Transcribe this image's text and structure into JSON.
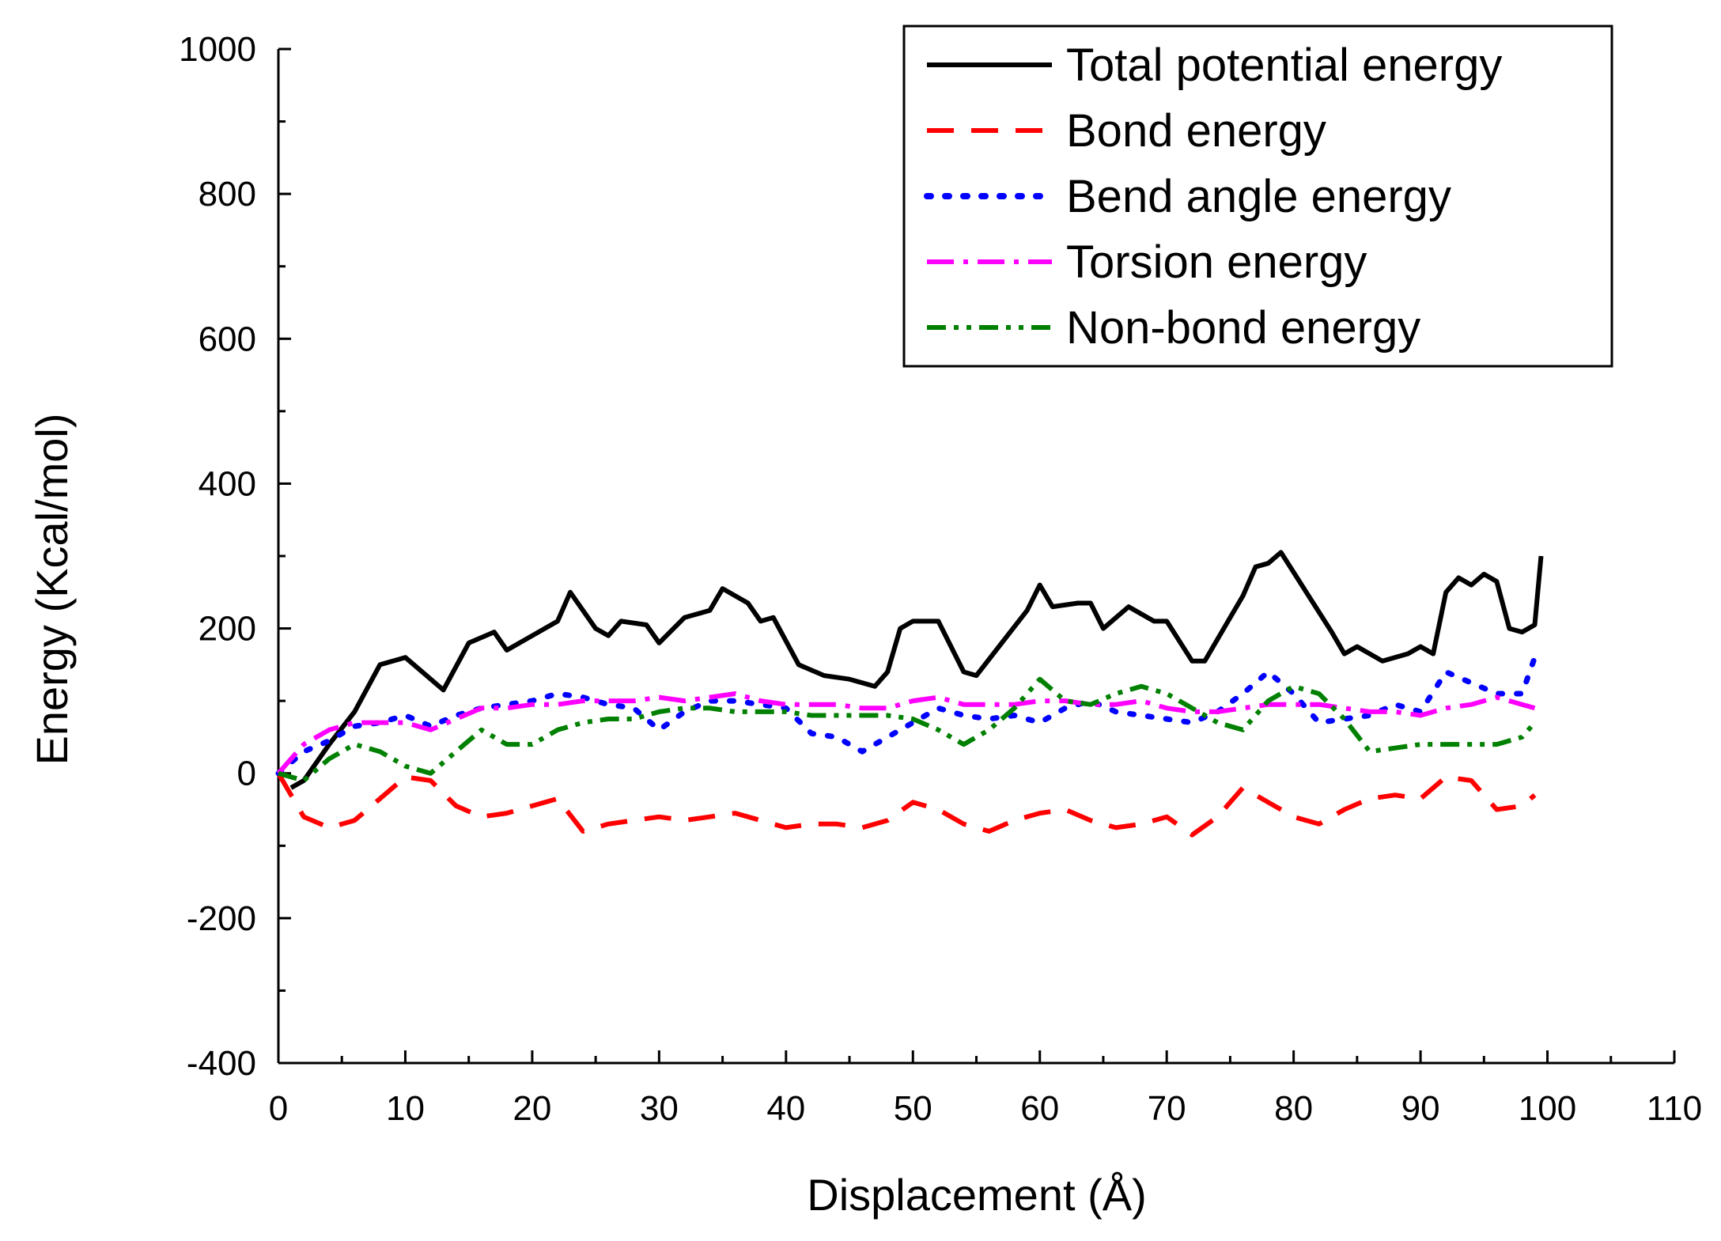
{
  "chart_data": {
    "type": "line",
    "title": "",
    "xlabel": "Displacement (Å)",
    "ylabel": "Energy (Kcal/mol)",
    "xlim": [
      0,
      110
    ],
    "ylim": [
      -400,
      1000
    ],
    "xticks": [
      0,
      10,
      20,
      30,
      40,
      50,
      60,
      70,
      80,
      90,
      100,
      110
    ],
    "yticks": [
      -400,
      -200,
      0,
      200,
      400,
      600,
      800,
      1000
    ],
    "xtick_labels": [
      "0",
      "10",
      "20",
      "30",
      "40",
      "50",
      "60",
      "70",
      "80",
      "90",
      "100",
      "110"
    ],
    "ytick_labels": [
      "-400",
      "-200",
      "0",
      "200",
      "400",
      "600",
      "800",
      "1000"
    ],
    "grid": false,
    "legend_position": "top-right",
    "series": [
      {
        "name": "Total potential energy",
        "color": "#000000",
        "dash": "solid",
        "x": [
          1,
          2,
          4,
          6,
          8,
          10,
          13,
          15,
          17,
          18,
          20,
          22,
          23,
          25,
          26,
          27,
          29,
          30,
          32,
          34,
          35,
          37,
          38,
          39,
          41,
          43,
          45,
          47,
          48,
          49,
          50,
          52,
          54,
          55,
          57,
          59,
          60,
          61,
          63,
          64,
          65,
          67,
          69,
          70,
          72,
          73,
          75,
          76,
          77,
          78,
          79,
          81,
          83,
          84,
          85,
          87,
          89,
          90,
          91,
          92,
          93,
          94,
          95,
          96,
          97,
          98,
          99,
          99.5
        ],
        "y": [
          -20,
          -10,
          40,
          85,
          150,
          160,
          115,
          180,
          195,
          170,
          190,
          210,
          250,
          200,
          190,
          210,
          205,
          180,
          215,
          225,
          255,
          235,
          210,
          215,
          150,
          135,
          130,
          120,
          140,
          200,
          210,
          210,
          140,
          135,
          180,
          225,
          260,
          230,
          235,
          235,
          200,
          230,
          210,
          210,
          155,
          155,
          215,
          245,
          285,
          290,
          305,
          250,
          195,
          165,
          175,
          155,
          165,
          175,
          165,
          250,
          270,
          260,
          275,
          265,
          200,
          195,
          205,
          300
        ]
      },
      {
        "name": "Bond energy",
        "color": "#ff0000",
        "dash": "dashed",
        "x": [
          0,
          2,
          4,
          6,
          8,
          10,
          12,
          14,
          16,
          18,
          20,
          22,
          24,
          26,
          28,
          30,
          32,
          34,
          36,
          38,
          40,
          42,
          44,
          46,
          48,
          50,
          52,
          54,
          56,
          58,
          60,
          62,
          64,
          66,
          68,
          70,
          72,
          74,
          76,
          78,
          80,
          82,
          84,
          86,
          88,
          90,
          92,
          94,
          96,
          98,
          99
        ],
        "y": [
          0,
          -60,
          -75,
          -65,
          -35,
          -5,
          -10,
          -45,
          -60,
          -55,
          -45,
          -35,
          -80,
          -70,
          -65,
          -60,
          -65,
          -60,
          -55,
          -65,
          -75,
          -70,
          -70,
          -75,
          -65,
          -40,
          -50,
          -70,
          -80,
          -65,
          -55,
          -50,
          -65,
          -75,
          -70,
          -60,
          -85,
          -60,
          -20,
          -40,
          -60,
          -70,
          -50,
          -35,
          -30,
          -35,
          -5,
          -10,
          -50,
          -45,
          -30
        ]
      },
      {
        "name": "Bend angle energy",
        "color": "#0000ff",
        "dash": "dotted",
        "x": [
          0,
          2,
          4,
          6,
          8,
          10,
          12,
          14,
          16,
          18,
          20,
          22,
          24,
          26,
          28,
          30,
          32,
          34,
          36,
          38,
          40,
          42,
          44,
          46,
          48,
          50,
          52,
          54,
          56,
          58,
          60,
          62,
          64,
          66,
          68,
          70,
          72,
          74,
          76,
          78,
          80,
          82,
          84,
          86,
          88,
          90,
          92,
          94,
          96,
          98,
          99
        ],
        "y": [
          0,
          30,
          45,
          65,
          70,
          80,
          65,
          80,
          90,
          95,
          100,
          110,
          105,
          95,
          90,
          60,
          85,
          100,
          100,
          95,
          90,
          55,
          50,
          30,
          50,
          70,
          90,
          80,
          75,
          80,
          70,
          90,
          100,
          85,
          80,
          75,
          70,
          85,
          110,
          140,
          110,
          70,
          75,
          80,
          95,
          85,
          140,
          125,
          110,
          110,
          160
        ]
      },
      {
        "name": "Torsion energy",
        "color": "#ff00ff",
        "dash": "dashdot",
        "x": [
          0,
          2,
          4,
          6,
          8,
          10,
          12,
          14,
          16,
          18,
          20,
          22,
          24,
          26,
          28,
          30,
          32,
          34,
          36,
          38,
          40,
          42,
          44,
          46,
          48,
          50,
          52,
          54,
          56,
          58,
          60,
          62,
          64,
          66,
          68,
          70,
          72,
          74,
          76,
          78,
          80,
          82,
          84,
          86,
          88,
          90,
          92,
          94,
          96,
          98,
          99
        ],
        "y": [
          0,
          40,
          60,
          70,
          70,
          70,
          60,
          75,
          90,
          90,
          95,
          95,
          100,
          100,
          100,
          105,
          100,
          105,
          110,
          100,
          95,
          95,
          95,
          90,
          90,
          100,
          105,
          95,
          95,
          95,
          100,
          100,
          95,
          95,
          100,
          90,
          85,
          85,
          90,
          95,
          95,
          95,
          90,
          85,
          85,
          80,
          90,
          95,
          105,
          95,
          90
        ]
      },
      {
        "name": "Non-bond energy",
        "color": "#008000",
        "dash": "dashdotdot",
        "x": [
          0,
          2,
          4,
          6,
          8,
          10,
          12,
          14,
          16,
          18,
          20,
          22,
          24,
          26,
          28,
          30,
          32,
          34,
          36,
          38,
          40,
          42,
          44,
          46,
          48,
          50,
          52,
          54,
          56,
          58,
          60,
          62,
          64,
          66,
          68,
          70,
          72,
          74,
          76,
          78,
          80,
          82,
          84,
          86,
          88,
          90,
          92,
          94,
          96,
          98,
          99
        ],
        "y": [
          0,
          -10,
          20,
          40,
          30,
          10,
          0,
          30,
          60,
          40,
          40,
          60,
          70,
          75,
          75,
          85,
          90,
          90,
          85,
          85,
          85,
          80,
          80,
          80,
          80,
          75,
          60,
          40,
          60,
          90,
          130,
          100,
          95,
          110,
          120,
          110,
          90,
          70,
          60,
          100,
          120,
          110,
          75,
          30,
          35,
          40,
          40,
          40,
          40,
          50,
          70
        ]
      }
    ]
  }
}
